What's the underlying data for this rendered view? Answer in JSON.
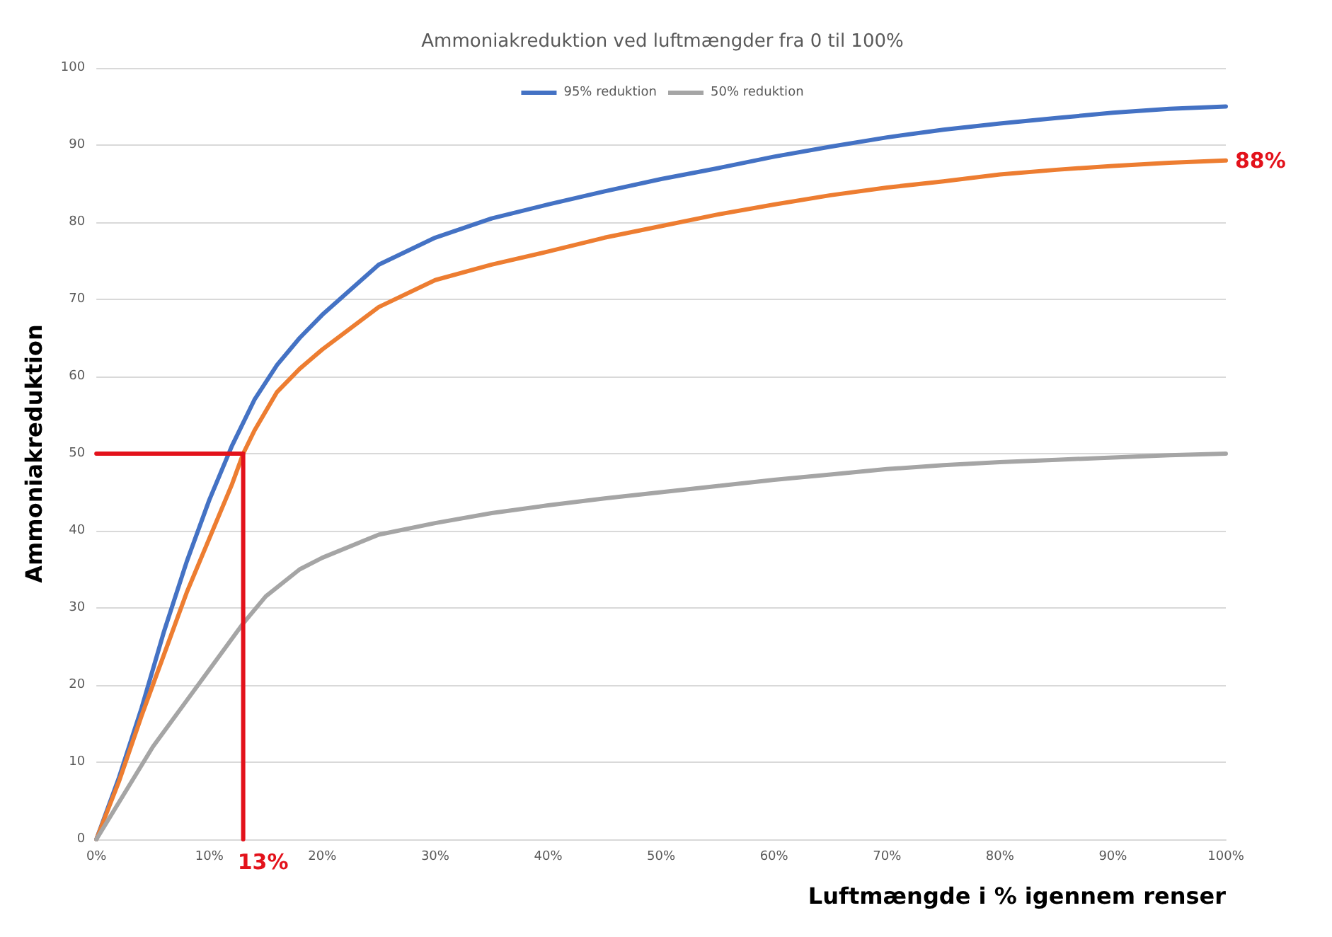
{
  "chart_data": {
    "type": "line",
    "title": "Ammoniakreduktion ved luftmængder fra 0 til 100%",
    "xlabel": "Luftmængde i % igennem renser",
    "ylabel": "Ammoniakreduktion",
    "xlim": [
      0,
      100
    ],
    "xticks": [
      {
        "value": 0,
        "label": "0%"
      },
      {
        "value": 10,
        "label": "10%"
      },
      {
        "value": 20,
        "label": "20%"
      },
      {
        "value": 30,
        "label": "30%"
      },
      {
        "value": 40,
        "label": "40%"
      },
      {
        "value": 50,
        "label": "50%"
      },
      {
        "value": 60,
        "label": "60%"
      },
      {
        "value": 70,
        "label": "70%"
      },
      {
        "value": 80,
        "label": "80%"
      },
      {
        "value": 90,
        "label": "90%"
      },
      {
        "value": 100,
        "label": "100%"
      }
    ],
    "ylim": [
      0,
      100
    ],
    "yticks": [
      0,
      10,
      20,
      30,
      40,
      50,
      60,
      70,
      80,
      90,
      100
    ],
    "grid": "y",
    "legend": "top",
    "marker": "none",
    "line_style": "solid",
    "series": [
      {
        "name": "95% reduktion",
        "color": "#4472c4",
        "x": [
          0,
          2,
          4,
          6,
          8,
          10,
          12,
          14,
          16,
          18,
          20,
          25,
          30,
          35,
          40,
          45,
          50,
          55,
          60,
          65,
          70,
          75,
          80,
          85,
          90,
          95,
          100
        ],
        "values": [
          0,
          8,
          17,
          27,
          36,
          44,
          51,
          57,
          61.5,
          65,
          68,
          74.5,
          78,
          80.5,
          82.3,
          84,
          85.6,
          87,
          88.5,
          89.8,
          91,
          92,
          92.8,
          93.5,
          94.2,
          94.7,
          95
        ]
      },
      {
        "color": "#ed7d31",
        "x": [
          0,
          2,
          4,
          6,
          8,
          10,
          12,
          13,
          14,
          16,
          18,
          20,
          25,
          30,
          35,
          40,
          45,
          50,
          55,
          60,
          65,
          70,
          75,
          80,
          85,
          90,
          95,
          100
        ],
        "values": [
          0,
          7.5,
          16,
          24,
          32,
          39,
          46,
          50,
          53,
          58,
          61,
          63.5,
          69,
          72.5,
          74.5,
          76.2,
          78,
          79.5,
          81,
          82.3,
          83.5,
          84.5,
          85.3,
          86.2,
          86.8,
          87.3,
          87.7,
          88
        ]
      },
      {
        "name": "50% reduktion",
        "color": "#a5a5a5",
        "x": [
          0,
          5,
          10,
          13,
          15,
          18,
          20,
          25,
          30,
          35,
          40,
          45,
          50,
          55,
          60,
          65,
          70,
          75,
          80,
          85,
          90,
          95,
          100
        ],
        "values": [
          0,
          12,
          22,
          28,
          31.5,
          35,
          36.5,
          39.5,
          41,
          42.3,
          43.3,
          44.2,
          45,
          45.8,
          46.6,
          47.3,
          48,
          48.5,
          48.9,
          49.2,
          49.5,
          49.8,
          50
        ]
      },
      {
        "color": "#e3121b",
        "x": [
          0,
          13,
          13
        ],
        "values": [
          50,
          50,
          0
        ]
      }
    ],
    "annotations": [
      {
        "text": "13%",
        "x": 13,
        "y": 0
      },
      {
        "text": "88%",
        "x": 100,
        "y": 88
      }
    ]
  }
}
